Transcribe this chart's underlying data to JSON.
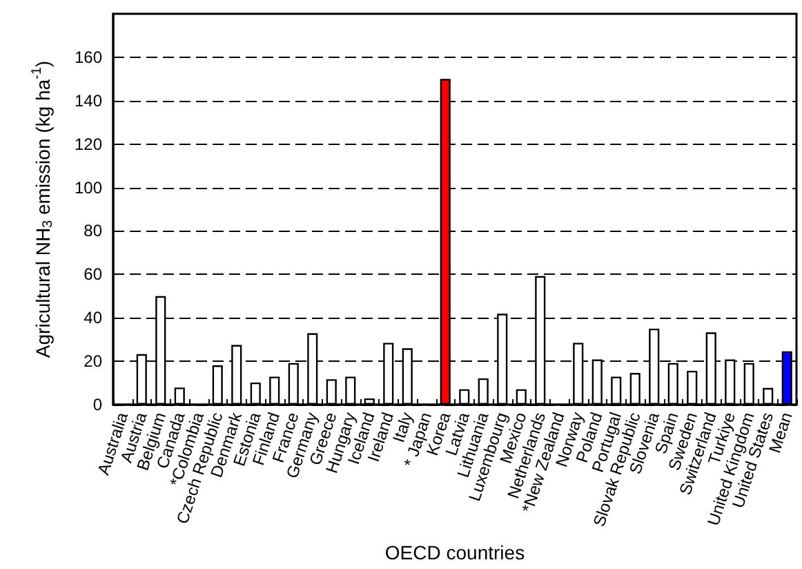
{
  "chart_data": {
    "type": "bar",
    "xlabel": "OECD countries",
    "ylabel": "Agricultural NH$_{3}$ emission (kg ha$^{-1}$)",
    "categories": [
      "Australia",
      "Austria",
      "Belgium",
      "Canada",
      "*Colombia",
      "Czech Republic",
      "Denmark",
      "Estonia",
      "Finland",
      "France",
      "Germany",
      "Greece",
      "Hungary",
      "Iceland",
      "Ireland",
      "Italy",
      "* Japan",
      "Korea",
      "Latvia",
      "Lithuania",
      "Luxembourg",
      "Mexico",
      "Netherlands",
      "*New Zealand",
      "Norway",
      "Poland",
      "Portugal",
      "Slovak Republic",
      "Slovenia",
      "Spain",
      "Sweden",
      "Switzerland",
      "Turkiye",
      "United Kingdom",
      "United States",
      "Mean"
    ],
    "values": [
      null,
      23.3,
      50,
      7.9,
      null,
      18.1,
      27.5,
      10.2,
      12.9,
      19.2,
      32.9,
      11.7,
      12.9,
      2.9,
      28.5,
      26,
      null,
      150,
      7.1,
      12.1,
      41.9,
      7.1,
      59.2,
      null,
      28.5,
      20.8,
      12.9,
      14.6,
      35,
      19.2,
      15.6,
      33.3,
      20.8,
      19.2,
      7.7,
      24.6
    ],
    "colors": [
      "#ffffff",
      "#ffffff",
      "#ffffff",
      "#ffffff",
      "#ffffff",
      "#ffffff",
      "#ffffff",
      "#ffffff",
      "#ffffff",
      "#ffffff",
      "#ffffff",
      "#ffffff",
      "#ffffff",
      "#ffffff",
      "#ffffff",
      "#ffffff",
      "#ffffff",
      "#ff0000",
      "#ffffff",
      "#ffffff",
      "#ffffff",
      "#ffffff",
      "#ffffff",
      "#ffffff",
      "#ffffff",
      "#ffffff",
      "#ffffff",
      "#ffffff",
      "#ffffff",
      "#ffffff",
      "#ffffff",
      "#ffffff",
      "#ffffff",
      "#ffffff",
      "#ffffff",
      "#0000ff"
    ],
    "ylim": [
      0,
      180
    ],
    "yticks": [
      0,
      20,
      40,
      60,
      80,
      100,
      120,
      140,
      160
    ],
    "grid": "y",
    "line_style": "dashed"
  }
}
